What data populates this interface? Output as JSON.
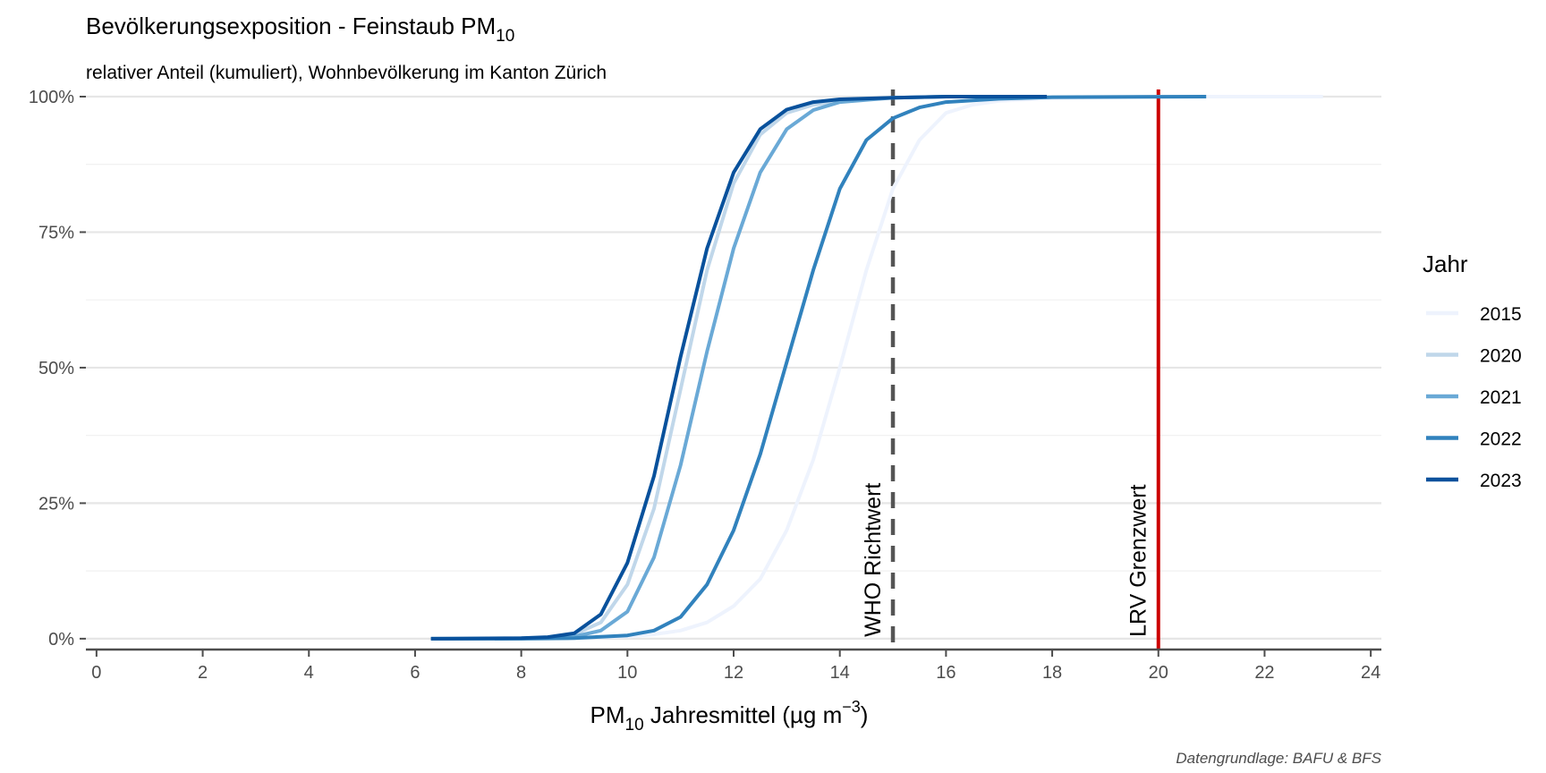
{
  "chart_data": {
    "type": "line",
    "title": "Bevölkerungsexposition - Feinstaub PM",
    "title_subscript": "10",
    "subtitle": "relativer Anteil (kumuliert), Wohnbevölkerung im Kanton Zürich",
    "xlabel_pre": "PM",
    "xlabel_sub": "10",
    "xlabel_mid": " Jahresmittel (µg m",
    "xlabel_sup": "−3",
    "xlabel_post": ")",
    "ylabel": "",
    "caption": "Datengrundlage: BAFU & BFS",
    "xlim": [
      -0.2,
      24.2
    ],
    "ylim": [
      -0.02,
      1.0
    ],
    "x_ticks": [
      0,
      2,
      4,
      6,
      8,
      10,
      12,
      14,
      16,
      18,
      20,
      22,
      24
    ],
    "x_tick_labels": [
      "0",
      "2",
      "4",
      "6",
      "8",
      "10",
      "12",
      "14",
      "16",
      "18",
      "20",
      "22",
      "24"
    ],
    "y_ticks": [
      0,
      0.25,
      0.5,
      0.75,
      1.0
    ],
    "y_tick_labels": [
      "0%",
      "25%",
      "50%",
      "75%",
      "100%"
    ],
    "y_minor_ticks": [
      0.125,
      0.375,
      0.625,
      0.875
    ],
    "grid": true,
    "legend": {
      "title": "Jahr",
      "placement": "right"
    },
    "reference_lines": [
      {
        "label": "WHO Richtwert",
        "x": 15,
        "style": "dashed",
        "color": "#555555"
      },
      {
        "label": "LRV Grenzwert",
        "x": 20,
        "style": "solid",
        "color": "#cc0000"
      }
    ],
    "series": [
      {
        "name": "2015",
        "color": "#eef3fd",
        "x": [
          8.0,
          9.0,
          10.0,
          10.5,
          11.0,
          11.5,
          12.0,
          12.5,
          13.0,
          13.5,
          14.0,
          14.5,
          15.0,
          15.5,
          16.0,
          16.5,
          17.0,
          18.0,
          20.0,
          23.1
        ],
        "y": [
          0.0,
          0.001,
          0.004,
          0.008,
          0.015,
          0.03,
          0.06,
          0.11,
          0.2,
          0.33,
          0.5,
          0.68,
          0.83,
          0.92,
          0.97,
          0.985,
          0.992,
          0.997,
          1.0,
          1.0
        ]
      },
      {
        "name": "2020",
        "color": "#c0d7ea",
        "x": [
          7.5,
          8.5,
          9.0,
          9.5,
          10.0,
          10.5,
          11.0,
          11.5,
          12.0,
          12.5,
          13.0,
          13.5,
          14.0,
          15.0,
          16.0
        ],
        "y": [
          0.0,
          0.002,
          0.008,
          0.03,
          0.1,
          0.24,
          0.46,
          0.68,
          0.84,
          0.93,
          0.97,
          0.985,
          0.992,
          0.998,
          1.0
        ]
      },
      {
        "name": "2021",
        "color": "#6aa9d6",
        "x": [
          7.5,
          8.5,
          9.0,
          9.5,
          10.0,
          10.5,
          11.0,
          11.5,
          12.0,
          12.5,
          13.0,
          13.5,
          14.0,
          15.0,
          16.0
        ],
        "y": [
          0.0,
          0.001,
          0.004,
          0.015,
          0.05,
          0.15,
          0.32,
          0.53,
          0.72,
          0.86,
          0.94,
          0.975,
          0.99,
          0.998,
          1.0
        ]
      },
      {
        "name": "2022",
        "color": "#3182bd",
        "x": [
          6.3,
          8.0,
          9.0,
          10.0,
          10.5,
          11.0,
          11.5,
          12.0,
          12.5,
          13.0,
          13.5,
          14.0,
          14.5,
          15.0,
          15.5,
          16.0,
          17.0,
          18.0,
          20.9
        ],
        "y": [
          0.0,
          0.0,
          0.001,
          0.006,
          0.015,
          0.04,
          0.1,
          0.2,
          0.34,
          0.51,
          0.68,
          0.83,
          0.92,
          0.96,
          0.98,
          0.99,
          0.996,
          0.999,
          1.0
        ]
      },
      {
        "name": "2023",
        "color": "#08519c",
        "x": [
          6.3,
          8.0,
          8.5,
          9.0,
          9.5,
          10.0,
          10.5,
          11.0,
          11.5,
          12.0,
          12.5,
          13.0,
          13.5,
          14.0,
          15.0,
          16.0,
          17.9
        ],
        "y": [
          0.0,
          0.001,
          0.003,
          0.01,
          0.045,
          0.14,
          0.3,
          0.52,
          0.72,
          0.86,
          0.94,
          0.976,
          0.99,
          0.995,
          0.998,
          1.0,
          1.0
        ]
      }
    ]
  }
}
